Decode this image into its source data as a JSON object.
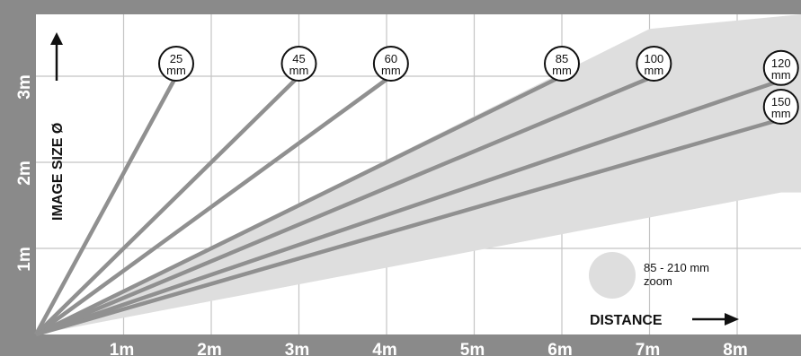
{
  "chart_data": {
    "type": "line",
    "xlabel": "DISTANCE",
    "ylabel": "IMAGE SIZE Ø",
    "xlim": [
      0,
      8.5
    ],
    "ylim": [
      0,
      3.5
    ],
    "x_ticks": [
      {
        "value": 1,
        "label": "1m"
      },
      {
        "value": 2,
        "label": "2m"
      },
      {
        "value": 3,
        "label": "3m"
      },
      {
        "value": 4,
        "label": "4m"
      },
      {
        "value": 5,
        "label": "5m"
      },
      {
        "value": 6,
        "label": "6m"
      },
      {
        "value": 7,
        "label": "7m"
      },
      {
        "value": 8,
        "label": "8m"
      }
    ],
    "y_ticks": [
      {
        "value": 1,
        "label": "1m"
      },
      {
        "value": 2,
        "label": "2m"
      },
      {
        "value": 3,
        "label": "3m"
      }
    ],
    "grid": true,
    "series": [
      {
        "name": "25 mm",
        "line1": "25",
        "line2": "mm",
        "x": [
          0,
          1.6
        ],
        "y": [
          0,
          3.0
        ]
      },
      {
        "name": "45 mm",
        "line1": "45",
        "line2": "mm",
        "x": [
          0,
          3.0
        ],
        "y": [
          0,
          3.0
        ]
      },
      {
        "name": "60 mm",
        "line1": "60",
        "line2": "mm",
        "x": [
          0,
          4.05
        ],
        "y": [
          0,
          3.0
        ]
      },
      {
        "name": "85 mm",
        "line1": "85",
        "line2": "mm",
        "x": [
          0,
          6.0
        ],
        "y": [
          0,
          3.0
        ]
      },
      {
        "name": "100 mm",
        "line1": "100",
        "line2": "mm",
        "x": [
          0,
          7.05
        ],
        "y": [
          0,
          3.0
        ]
      },
      {
        "name": "120 mm",
        "line1": "120",
        "line2": "mm",
        "x": [
          0,
          8.5
        ],
        "y": [
          0,
          2.95
        ]
      },
      {
        "name": "150 mm",
        "line1": "150",
        "line2": "mm",
        "x": [
          0,
          8.5
        ],
        "y": [
          0,
          2.5
        ]
      }
    ],
    "zoom_band": {
      "label_line1": "85 - 210 mm",
      "label_line2": "zoom",
      "upper": {
        "x": [
          0,
          7.0
        ],
        "y": [
          0,
          3.55
        ]
      },
      "lower": {
        "x": [
          0,
          8.5
        ],
        "y": [
          0,
          1.65
        ]
      }
    },
    "colors": {
      "frame": "#8a8a8a",
      "plot_bg": "#ffffff",
      "grid": "#c4c4c4",
      "zoom_band": "#dedede",
      "lines": "#909090",
      "tick_text": "#ffffff",
      "text": "#111111"
    }
  }
}
